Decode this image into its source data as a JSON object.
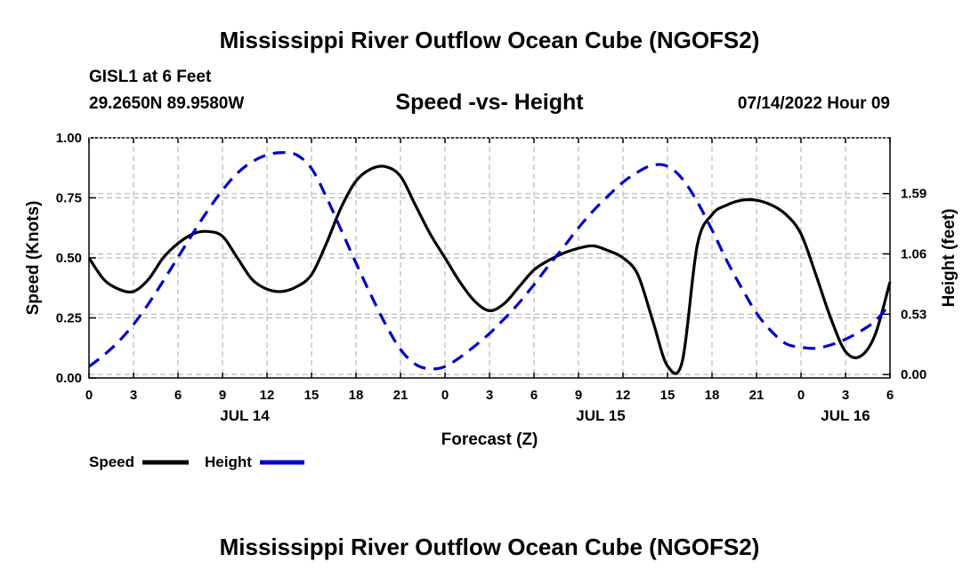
{
  "header": {
    "title": "Mississippi River Outflow Ocean Cube (NGOFS2)",
    "station": "GISL1 at 6 Feet",
    "coords": "29.2650N  89.9580W",
    "subtitle": "Speed -vs- Height",
    "datetime": "07/14/2022 Hour 09"
  },
  "footer": {
    "title": "Mississippi River Outflow Ocean Cube (NGOFS2)"
  },
  "colors": {
    "speed": "#000000",
    "height": "#0000cc",
    "grid": "#bbbbbb"
  },
  "chart_data": {
    "type": "line",
    "title": "Speed -vs- Height",
    "xlabel": "Forecast (Z)",
    "ylabel_left": "Speed (Knots)",
    "ylabel_right": "Height (feet)",
    "x_range_hours": [
      0,
      54
    ],
    "x_ticks": [
      {
        "h": 0,
        "label": "0"
      },
      {
        "h": 3,
        "label": "3"
      },
      {
        "h": 6,
        "label": "6"
      },
      {
        "h": 9,
        "label": "9"
      },
      {
        "h": 12,
        "label": "12"
      },
      {
        "h": 15,
        "label": "15"
      },
      {
        "h": 18,
        "label": "18"
      },
      {
        "h": 21,
        "label": "21"
      },
      {
        "h": 24,
        "label": "0"
      },
      {
        "h": 27,
        "label": "3"
      },
      {
        "h": 30,
        "label": "6"
      },
      {
        "h": 33,
        "label": "9"
      },
      {
        "h": 36,
        "label": "12"
      },
      {
        "h": 39,
        "label": "15"
      },
      {
        "h": 42,
        "label": "18"
      },
      {
        "h": 45,
        "label": "21"
      },
      {
        "h": 48,
        "label": "0"
      },
      {
        "h": 51,
        "label": "3"
      },
      {
        "h": 54,
        "label": "6"
      }
    ],
    "date_labels": [
      {
        "h": 10.5,
        "label": "JUL 14"
      },
      {
        "h": 34.5,
        "label": "JUL 15"
      },
      {
        "h": 51,
        "label": "JUL 16"
      }
    ],
    "ylim_left": [
      0,
      1.0
    ],
    "yticks_left": [
      "0.00",
      "0.25",
      "0.50",
      "0.75",
      "1.00"
    ],
    "ylim_right": [
      -0.03,
      2.08
    ],
    "yticks_right": [
      "0.00",
      "0.53",
      "1.06",
      "1.59"
    ],
    "series": [
      {
        "name": "Speed",
        "axis": "left",
        "x": [
          0,
          1,
          2,
          3,
          4,
          5,
          6,
          7,
          8,
          9,
          10,
          11,
          12,
          13,
          14,
          15,
          16,
          17,
          18,
          19,
          20,
          21,
          22,
          23,
          24,
          25,
          26,
          27,
          28,
          29,
          30,
          31,
          32,
          33,
          34,
          35,
          36,
          37,
          38,
          39,
          40,
          41,
          42,
          43,
          44,
          45,
          46,
          47,
          48,
          49,
          50,
          51,
          52,
          53,
          54
        ],
        "values": [
          0.5,
          0.41,
          0.37,
          0.36,
          0.41,
          0.5,
          0.56,
          0.6,
          0.61,
          0.59,
          0.5,
          0.41,
          0.37,
          0.36,
          0.38,
          0.43,
          0.56,
          0.71,
          0.82,
          0.87,
          0.88,
          0.84,
          0.72,
          0.6,
          0.5,
          0.4,
          0.32,
          0.28,
          0.31,
          0.38,
          0.45,
          0.49,
          0.52,
          0.54,
          0.55,
          0.53,
          0.5,
          0.43,
          0.24,
          0.05,
          0.07,
          0.55,
          0.68,
          0.72,
          0.74,
          0.74,
          0.72,
          0.68,
          0.6,
          0.43,
          0.25,
          0.11,
          0.09,
          0.18,
          0.4
        ]
      },
      {
        "name": "Height",
        "axis": "right",
        "x": [
          0,
          1,
          2,
          3,
          4,
          5,
          6,
          7,
          8,
          9,
          10,
          11,
          12,
          13,
          14,
          15,
          16,
          17,
          18,
          19,
          20,
          21,
          22,
          23,
          24,
          25,
          26,
          27,
          28,
          29,
          30,
          31,
          32,
          33,
          34,
          35,
          36,
          37,
          38,
          39,
          40,
          41,
          42,
          43,
          44,
          45,
          46,
          47,
          48,
          49,
          50,
          51,
          52,
          53,
          54
        ],
        "values": [
          0.07,
          0.17,
          0.29,
          0.44,
          0.62,
          0.82,
          1.03,
          1.24,
          1.44,
          1.62,
          1.77,
          1.87,
          1.93,
          1.95,
          1.93,
          1.81,
          1.56,
          1.27,
          0.98,
          0.7,
          0.44,
          0.22,
          0.09,
          0.05,
          0.07,
          0.15,
          0.25,
          0.36,
          0.49,
          0.63,
          0.79,
          0.96,
          1.12,
          1.29,
          1.44,
          1.57,
          1.69,
          1.78,
          1.84,
          1.83,
          1.72,
          1.52,
          1.27,
          1.0,
          0.76,
          0.54,
          0.38,
          0.27,
          0.24,
          0.23,
          0.26,
          0.31,
          0.38,
          0.47,
          0.62
        ]
      }
    ],
    "legend": [
      {
        "name": "Speed"
      },
      {
        "name": "Height"
      }
    ]
  }
}
